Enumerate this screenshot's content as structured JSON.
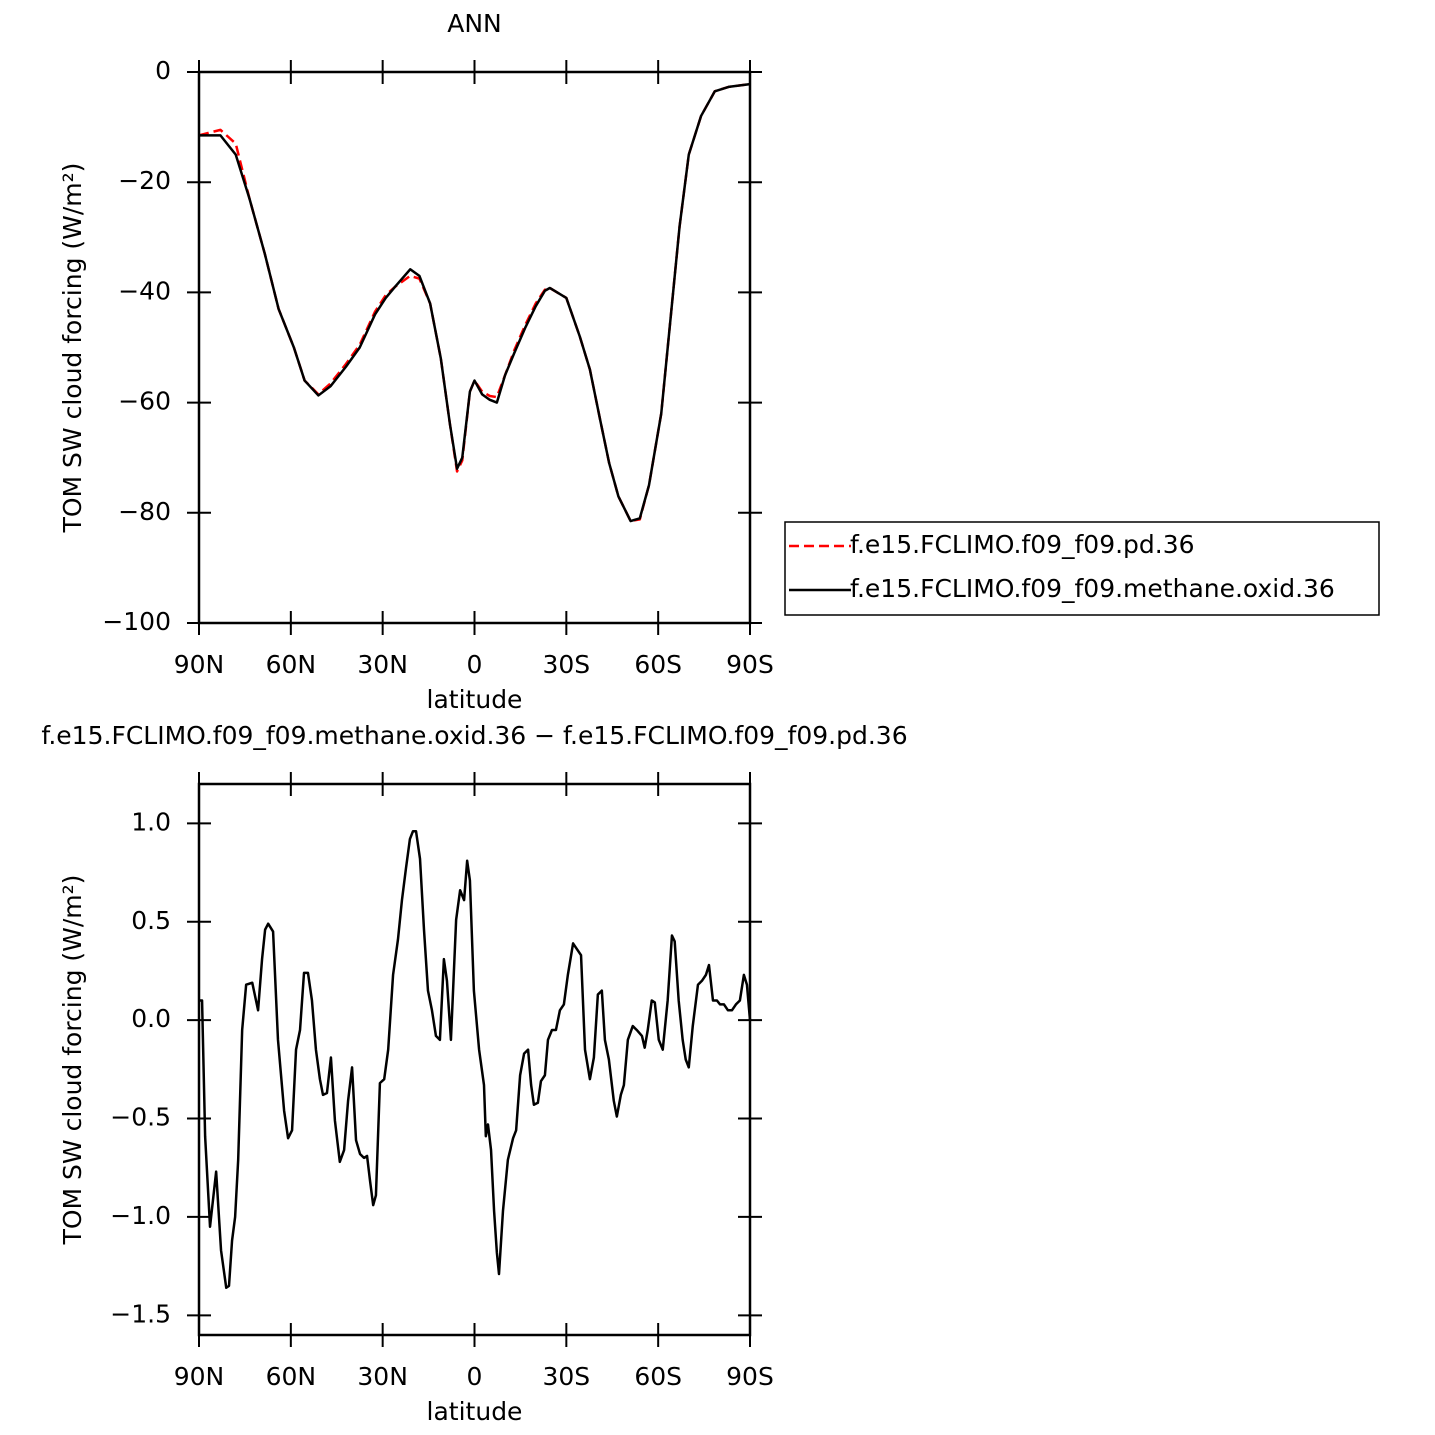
{
  "chart_data": [
    {
      "type": "line",
      "title": "ANN",
      "xlabel": "latitude",
      "ylabel": "TOM SW cloud forcing (W/m²)",
      "x": [
        90,
        83,
        78,
        73.5,
        68.5,
        64,
        59,
        55.5,
        51,
        47,
        42,
        37.5,
        32.5,
        29,
        26,
        21,
        18,
        14.5,
        11,
        8,
        5.7,
        4,
        1.5,
        0,
        -2.5,
        -5,
        -7.3,
        -10,
        -13,
        -16.5,
        -20,
        -23,
        -24.6,
        -30,
        -34.4,
        -37.7,
        -41,
        -44,
        -47,
        -51,
        -54,
        -57,
        -61,
        -64,
        -67,
        -70,
        -74,
        -77,
        -78.5,
        -83,
        -90
      ],
      "series": [
        {
          "name": "f.e15.FCLIMO.f09_f09.pd.36",
          "color": "#ff0000",
          "dashed": true,
          "values": [
            -11.5,
            -10.5,
            -13,
            -23,
            -33,
            -43,
            -50,
            -56,
            -58.5,
            -56.5,
            -53,
            -49.5,
            -43.5,
            -40.5,
            -39,
            -37,
            -37.5,
            -42,
            -52,
            -64,
            -72.5,
            -70.5,
            -58,
            -56,
            -58,
            -58.8,
            -59,
            -55,
            -50.5,
            -46,
            -42,
            -39.5,
            -39.2,
            -41,
            -48,
            -54,
            -63,
            -71,
            -77,
            -81.5,
            -81.2,
            -75,
            -62,
            -45,
            -28,
            -15,
            -8,
            -5,
            -3.5,
            -2.7,
            -2.2
          ]
        },
        {
          "name": "f.e15.FCLIMO.f09_f09.methane.oxid.36",
          "color": "#000000",
          "dashed": false,
          "values": [
            -11.5,
            -11.5,
            -15,
            -23,
            -33,
            -43,
            -50,
            -56,
            -58.7,
            -57,
            -53.5,
            -50,
            -44,
            -41,
            -39,
            -35.8,
            -37,
            -42,
            -52,
            -64,
            -72,
            -70,
            -58,
            -56,
            -58.5,
            -59.5,
            -60,
            -55,
            -51,
            -46.5,
            -42.5,
            -39.7,
            -39.2,
            -41,
            -48,
            -54,
            -63,
            -71,
            -77,
            -81.5,
            -81,
            -75,
            -62,
            -45,
            -28,
            -15,
            -8,
            -5,
            -3.5,
            -2.7,
            -2.2
          ]
        }
      ],
      "xlim": [
        90,
        -90
      ],
      "xticks": [
        {
          "value": 90,
          "label": "90N"
        },
        {
          "value": 60,
          "label": "60N"
        },
        {
          "value": 30,
          "label": "30N"
        },
        0,
        {
          "value": -30,
          "label": "30S"
        },
        {
          "value": -60,
          "label": "60S"
        },
        {
          "value": -90,
          "label": "90S"
        }
      ],
      "ylim": [
        -100,
        0
      ],
      "yticks": [
        0,
        {
          "value": -20,
          "label": "−20"
        },
        {
          "value": -40,
          "label": "−40"
        },
        {
          "value": -60,
          "label": "−60"
        },
        {
          "value": -80,
          "label": "−80"
        },
        {
          "value": -100,
          "label": "−100"
        }
      ],
      "legend": "right"
    },
    {
      "type": "line",
      "title": "f.e15.FCLIMO.f09_f09.methane.oxid.36 − f.e15.FCLIMO.f09_f09.pd.36",
      "xlabel": "latitude",
      "ylabel": "TOM SW cloud forcing (W/m²)",
      "x": [
        90,
        89.0,
        88.0,
        86.4,
        84.4,
        82.8,
        81.1,
        80.2,
        79.2,
        78.2,
        77.2,
        75.9,
        74.6,
        72.6,
        70.7,
        69.4,
        68.4,
        67.4,
        65.8,
        64.2,
        62.2,
        60.9,
        59.6,
        58.3,
        57.0,
        55.7,
        54.4,
        53.1,
        51.8,
        50.5,
        49.5,
        48.2,
        46.9,
        45.6,
        44.0,
        42.6,
        41.3,
        40.0,
        38.7,
        37.4,
        36.1,
        35.1,
        34.1,
        33.1,
        32.2,
        30.9,
        29.5,
        28.2,
        26.6,
        25.0,
        23.7,
        22.4,
        21.1,
        20.1,
        19.1,
        17.8,
        16.5,
        15.2,
        13.9,
        12.6,
        11.3,
        10.0,
        9.0,
        7.7,
        6.0,
        4.7,
        3.4,
        2.4,
        1.5,
        0.2,
        -1.5,
        -3.1,
        -3.7,
        -4.4,
        -5.4,
        -6.4,
        -7.3,
        -8.0,
        -9.3,
        -10.9,
        -12.6,
        -13.6,
        -14.9,
        -16.2,
        -17.5,
        -18.5,
        -19.4,
        -20.7,
        -21.7,
        -23.0,
        -24.0,
        -25.3,
        -26.6,
        -27.9,
        -29.2,
        -30.5,
        -32.2,
        -33.5,
        -34.8,
        -36.1,
        -37.7,
        -39.0,
        -40.3,
        -41.6,
        -42.6,
        -43.9,
        -45.5,
        -46.5,
        -47.8,
        -48.8,
        -50.1,
        -51.7,
        -53.0,
        -54.7,
        -55.6,
        -56.6,
        -57.9,
        -58.9,
        -60.2,
        -61.5,
        -63.1,
        -64.5,
        -65.4,
        -66.7,
        -68.0,
        -69.0,
        -70.0,
        -71.3,
        -73.0,
        -74.3,
        -75.6,
        -76.6,
        -77.9,
        -79.2,
        -80.2,
        -81.5,
        -82.8,
        -84.1,
        -85.4,
        -86.7,
        -88.0,
        -89.0,
        -90.0
      ],
      "values": [
        0.1,
        0.1,
        -0.59,
        -1.05,
        -0.77,
        -1.17,
        -1.36,
        -1.35,
        -1.12,
        -1.0,
        -0.71,
        -0.05,
        0.18,
        0.19,
        0.05,
        0.31,
        0.46,
        0.49,
        0.45,
        -0.1,
        -0.46,
        -0.6,
        -0.56,
        -0.15,
        -0.05,
        0.24,
        0.24,
        0.1,
        -0.15,
        -0.3,
        -0.38,
        -0.37,
        -0.19,
        -0.51,
        -0.72,
        -0.66,
        -0.41,
        -0.24,
        -0.61,
        -0.68,
        -0.7,
        -0.69,
        -0.82,
        -0.94,
        -0.89,
        -0.32,
        -0.3,
        -0.15,
        0.23,
        0.41,
        0.61,
        0.77,
        0.92,
        0.96,
        0.96,
        0.82,
        0.46,
        0.15,
        0.05,
        -0.08,
        -0.1,
        0.31,
        0.2,
        -0.1,
        0.51,
        0.66,
        0.61,
        0.81,
        0.71,
        0.15,
        -0.15,
        -0.33,
        -0.59,
        -0.53,
        -0.66,
        -0.97,
        -1.18,
        -1.29,
        -0.97,
        -0.71,
        -0.6,
        -0.56,
        -0.28,
        -0.17,
        -0.15,
        -0.33,
        -0.43,
        -0.42,
        -0.31,
        -0.28,
        -0.1,
        -0.05,
        -0.05,
        0.05,
        0.08,
        0.23,
        0.39,
        0.36,
        0.33,
        -0.15,
        -0.3,
        -0.19,
        0.13,
        0.15,
        -0.1,
        -0.2,
        -0.41,
        -0.49,
        -0.38,
        -0.33,
        -0.1,
        -0.03,
        -0.05,
        -0.08,
        -0.14,
        -0.05,
        0.1,
        0.09,
        -0.1,
        -0.15,
        0.1,
        0.43,
        0.4,
        0.1,
        -0.1,
        -0.2,
        -0.24,
        -0.03,
        0.18,
        0.2,
        0.23,
        0.28,
        0.1,
        0.1,
        0.08,
        0.08,
        0.05,
        0.05,
        0.08,
        0.1,
        0.23,
        0.18,
        0
      ],
      "color": "#000000",
      "xlim": [
        90,
        -90
      ],
      "xticks": [
        {
          "value": 90,
          "label": "90N"
        },
        {
          "value": 60,
          "label": "60N"
        },
        {
          "value": 30,
          "label": "30N"
        },
        0,
        {
          "value": -30,
          "label": "30S"
        },
        {
          "value": -60,
          "label": "60S"
        },
        {
          "value": -90,
          "label": "90S"
        }
      ],
      "ylim": [
        -1.6,
        1.2
      ],
      "yticks": [
        {
          "value": 1.0,
          "label": "1.0"
        },
        {
          "value": 0.5,
          "label": "0.5"
        },
        {
          "value": 0.0,
          "label": "0.0"
        },
        {
          "value": -0.5,
          "label": "−0.5"
        },
        {
          "value": -1.0,
          "label": "−1.0"
        },
        {
          "value": -1.5,
          "label": "−1.5"
        }
      ]
    }
  ]
}
